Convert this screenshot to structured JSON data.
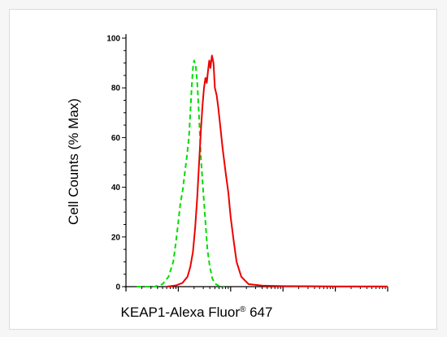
{
  "chart_data": {
    "type": "line",
    "title": "",
    "xlabel": "KEAP1-Alexa Fluor",
    "xlabel_superscript": "®",
    "xlabel_suffix": " 647",
    "ylabel": "Cell Counts (% Max)",
    "x_scale": "log",
    "xlim": [
      1,
      100000
    ],
    "ylim": [
      0,
      100
    ],
    "y_ticks": [
      0,
      20,
      40,
      60,
      80,
      100
    ],
    "grid": false,
    "legend": "none",
    "series": [
      {
        "color": "#00dd00",
        "style": "dashed",
        "x": [
          1.6,
          3.5,
          5,
          6.5,
          8,
          9,
          10,
          11,
          12,
          13,
          14.5,
          16,
          17,
          18,
          19,
          20,
          21.5,
          23,
          25,
          27,
          30,
          33,
          36,
          40,
          45,
          52,
          60,
          75
        ],
        "y": [
          0,
          0,
          1,
          4,
          10,
          18,
          26,
          34,
          38,
          44,
          52,
          60,
          70,
          80,
          88,
          91,
          89,
          82,
          68,
          52,
          38,
          26,
          15,
          8,
          3,
          1,
          0.3,
          0
        ]
      },
      {
        "color": "#ee0000",
        "style": "solid",
        "x": [
          6,
          9,
          12,
          15,
          17,
          19,
          21,
          23,
          25,
          27,
          29,
          31,
          33,
          35,
          37,
          39,
          41,
          44,
          47,
          50,
          54,
          58,
          63,
          70,
          80,
          90,
          100,
          115,
          130,
          160,
          220,
          400,
          1000,
          10000,
          100000
        ],
        "y": [
          0,
          0.5,
          1.5,
          4,
          8,
          14,
          24,
          36,
          50,
          63,
          73,
          80,
          84,
          82,
          87,
          91,
          88,
          93,
          90,
          80,
          77,
          72,
          65,
          56,
          46,
          38,
          28,
          18,
          10,
          4,
          1,
          0.4,
          0.2,
          0.1,
          0.1
        ]
      }
    ]
  }
}
